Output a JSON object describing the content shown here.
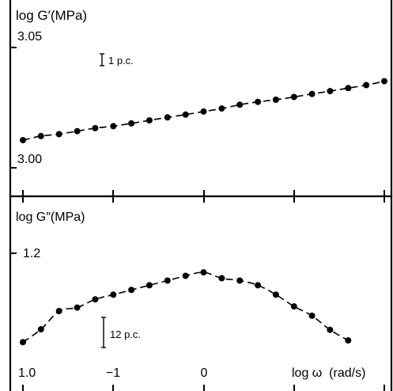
{
  "chart_data": [
    {
      "type": "line",
      "ylabel": "log G′(MPa)",
      "y_ticks": [
        "3.05",
        "3.00"
      ],
      "y_tick_values": [
        3.05,
        3.0
      ],
      "ylim": [
        2.988,
        3.066
      ],
      "xlim": [
        -2.0,
        2.0
      ],
      "x_tick_values": [
        -2,
        -1,
        0,
        1,
        2
      ],
      "grid": false,
      "scale_bar": {
        "label": "1 p.c.",
        "value": 0.01
      },
      "series": [
        {
          "line_style": "dashed",
          "points": [
            [
              -2.0,
              3.0082
            ],
            [
              -1.8,
              3.0101
            ],
            [
              -1.6,
              3.011
            ],
            [
              -1.4,
              3.0124
            ],
            [
              -1.2,
              3.0138
            ],
            [
              -1.0,
              3.0147
            ],
            [
              -0.8,
              3.016
            ],
            [
              -0.6,
              3.0174
            ],
            [
              -0.4,
              3.0188
            ],
            [
              -0.2,
              3.0201
            ],
            [
              0.0,
              3.0215
            ],
            [
              0.2,
              3.0229
            ],
            [
              0.4,
              3.0247
            ],
            [
              0.6,
              3.026
            ],
            [
              0.8,
              3.027
            ],
            [
              1.0,
              3.0283
            ],
            [
              1.2,
              3.0297
            ],
            [
              1.4,
              3.031
            ],
            [
              1.6,
              3.0324
            ],
            [
              1.8,
              3.0338
            ],
            [
              2.0,
              3.0356
            ]
          ]
        }
      ]
    },
    {
      "type": "line",
      "ylabel": "log G″(MPa)",
      "xlabel": "log ω  (rad/s)",
      "y_ticks": [
        "1.2",
        "1.0"
      ],
      "y_tick_values": [
        1.2,
        1.0
      ],
      "ylim": [
        0.985,
        1.29
      ],
      "xlim": [
        -2.0,
        2.0
      ],
      "x_ticks": [
        "−1",
        "0"
      ],
      "x_tick_values": [
        -1,
        0
      ],
      "grid": false,
      "scale_bar": {
        "label": "12 p.c.",
        "value": 0.049
      },
      "series": [
        {
          "line_style": "dashed",
          "points": [
            [
              -2.0,
              1.071
            ],
            [
              -1.8,
              1.093
            ],
            [
              -1.6,
              1.124
            ],
            [
              -1.4,
              1.13
            ],
            [
              -1.2,
              1.144
            ],
            [
              -1.0,
              1.152
            ],
            [
              -0.8,
              1.16
            ],
            [
              -0.6,
              1.168
            ],
            [
              -0.4,
              1.176
            ],
            [
              -0.2,
              1.184
            ],
            [
              0.0,
              1.19
            ],
            [
              0.2,
              1.18
            ],
            [
              0.4,
              1.176
            ],
            [
              0.6,
              1.168
            ],
            [
              0.8,
              1.152
            ],
            [
              1.0,
              1.132
            ],
            [
              1.2,
              1.116
            ],
            [
              1.4,
              1.092
            ],
            [
              1.6,
              1.074
            ]
          ]
        }
      ]
    }
  ]
}
